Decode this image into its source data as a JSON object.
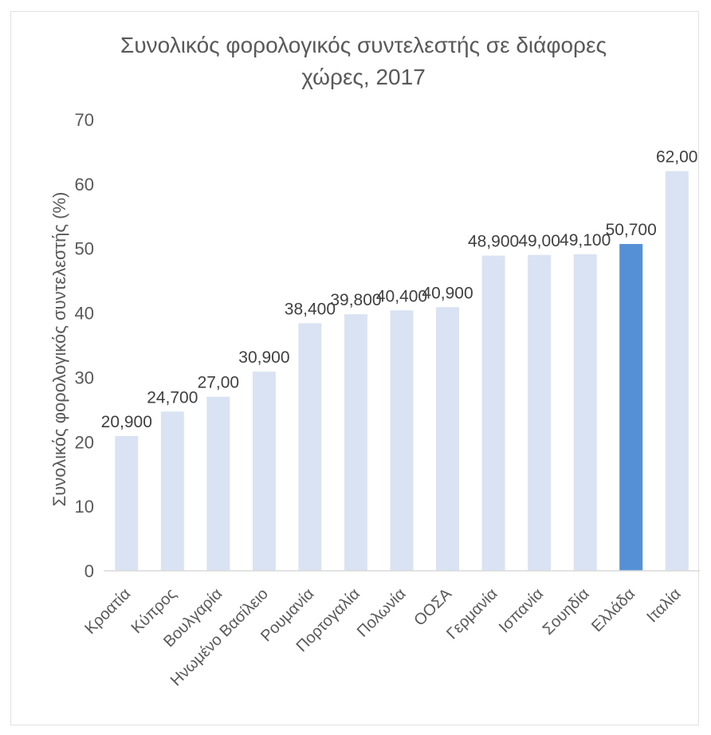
{
  "chart_data": {
    "type": "bar",
    "title_lines": [
      "Συνολικός φορολογικός συντελεστής σε διάφορες",
      "χώρες, 2017"
    ],
    "ylabel": "Συνολικός φορολογικός συντελεστής (%)",
    "xlabel": "",
    "ylim": [
      0,
      70
    ],
    "yticks": [
      "0",
      "10",
      "20",
      "30",
      "40",
      "50",
      "60",
      "70"
    ],
    "categories": [
      "Κροατία",
      "Κύπρος",
      "Βουλγαρία",
      "Ηνωμένο Βασίλειο",
      "Ρουμανία",
      "Πορτογαλία",
      "Πολωνία",
      "ΟΟΣΑ",
      "Γερμανία",
      "Ισπανία",
      "Σουηδία",
      "Ελλάδα",
      "Ιταλία"
    ],
    "values": [
      20.9,
      24.7,
      27.0,
      30.9,
      38.4,
      39.8,
      40.4,
      40.9,
      48.9,
      49.0,
      49.1,
      50.7,
      62.0
    ],
    "data_labels": [
      "20,900",
      "24,700",
      "27,00",
      "30,900",
      "38,400",
      "39,800",
      "40,400",
      "40,900",
      "48,900",
      "49,00",
      "49,100",
      "50,700",
      "62,00"
    ],
    "highlight_category": "Ελλάδα",
    "colors": {
      "bar": "#dae3f3",
      "highlight": "#5590d6",
      "baseline": "#d9d9d9"
    },
    "grid": false,
    "legend": "none"
  }
}
